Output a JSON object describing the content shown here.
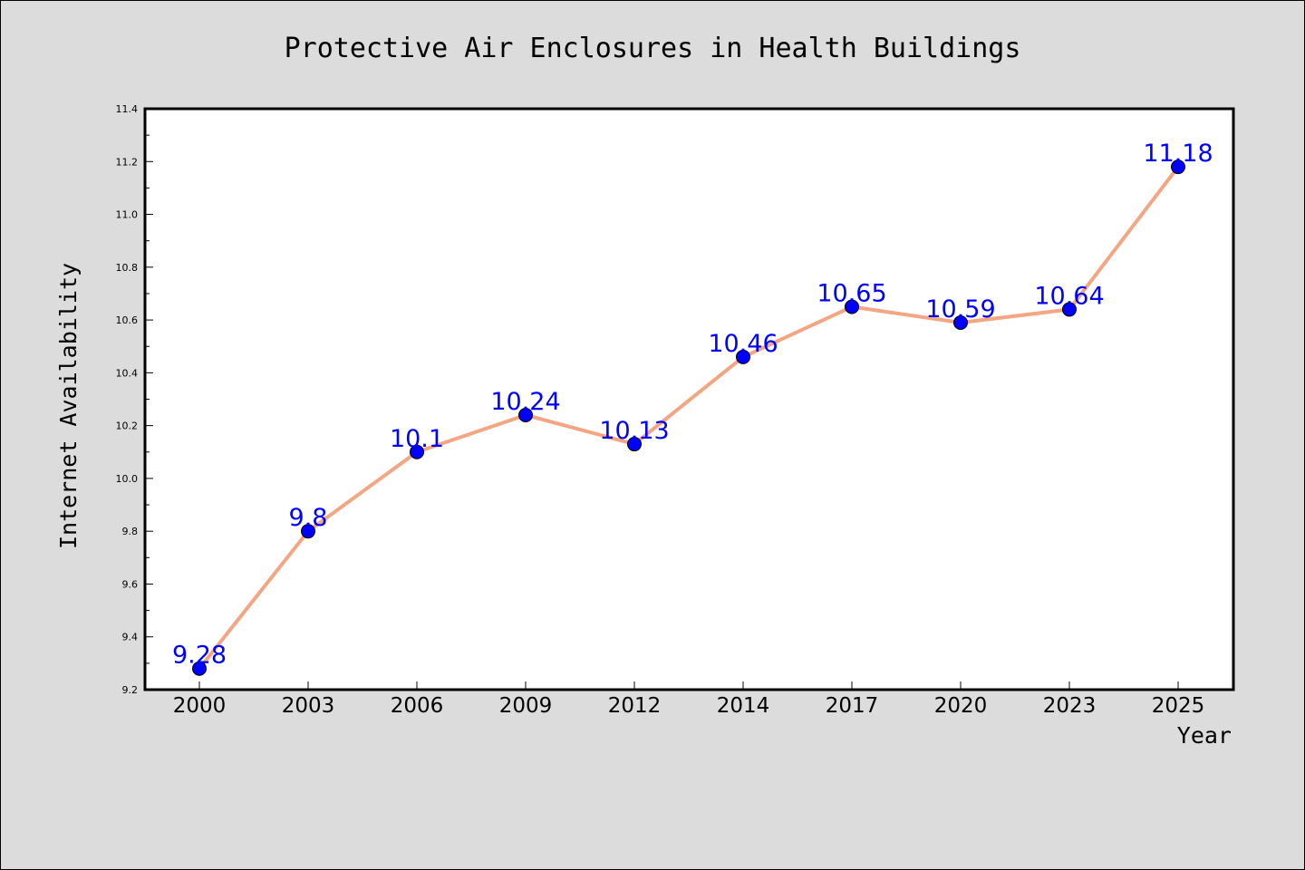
{
  "chart_data": {
    "type": "line",
    "title": "Protective Air Enclosures in Health Buildings",
    "xlabel": "Year",
    "ylabel": "Internet Availability",
    "categories": [
      "2000",
      "2003",
      "2006",
      "2009",
      "2012",
      "2014",
      "2017",
      "2020",
      "2023",
      "2025"
    ],
    "series": [
      {
        "values": [
          9.28,
          9.8,
          10.1,
          10.24,
          10.13,
          10.46,
          10.65,
          10.59,
          10.64,
          11.18
        ],
        "labels": [
          "9.28",
          "9.8",
          "10.1",
          "10.24",
          "10.13",
          "10.46",
          "10.65",
          "10.59",
          "10.64",
          "11.18"
        ]
      }
    ],
    "ylim": [
      9.2,
      11.4
    ],
    "yticks": [
      "9.2",
      "9.4",
      "9.6",
      "9.8",
      "10.0",
      "10.2",
      "10.4",
      "10.6",
      "10.8",
      "11.0",
      "11.2",
      "11.4"
    ],
    "grid": false,
    "legend": "none",
    "colors": {
      "background": "#dcdcdc",
      "plot_background": "#ffffff",
      "line": "#f4a582",
      "marker": "#0000ff",
      "data_label": "#0000ff"
    }
  }
}
